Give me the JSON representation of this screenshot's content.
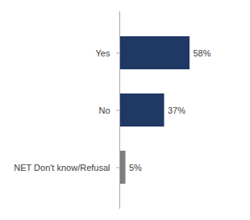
{
  "chart_data": {
    "type": "bar",
    "orientation": "horizontal",
    "categories": [
      "Yes",
      "No",
      "NET Don't know/Refusal"
    ],
    "values": [
      58,
      37,
      5
    ],
    "value_labels": [
      "58%",
      "37%",
      "5%"
    ],
    "colors": [
      "#1f3864",
      "#1f3864",
      "#7f7f7f"
    ],
    "data_labels": true,
    "tick_labels": "y",
    "grid": false
  }
}
